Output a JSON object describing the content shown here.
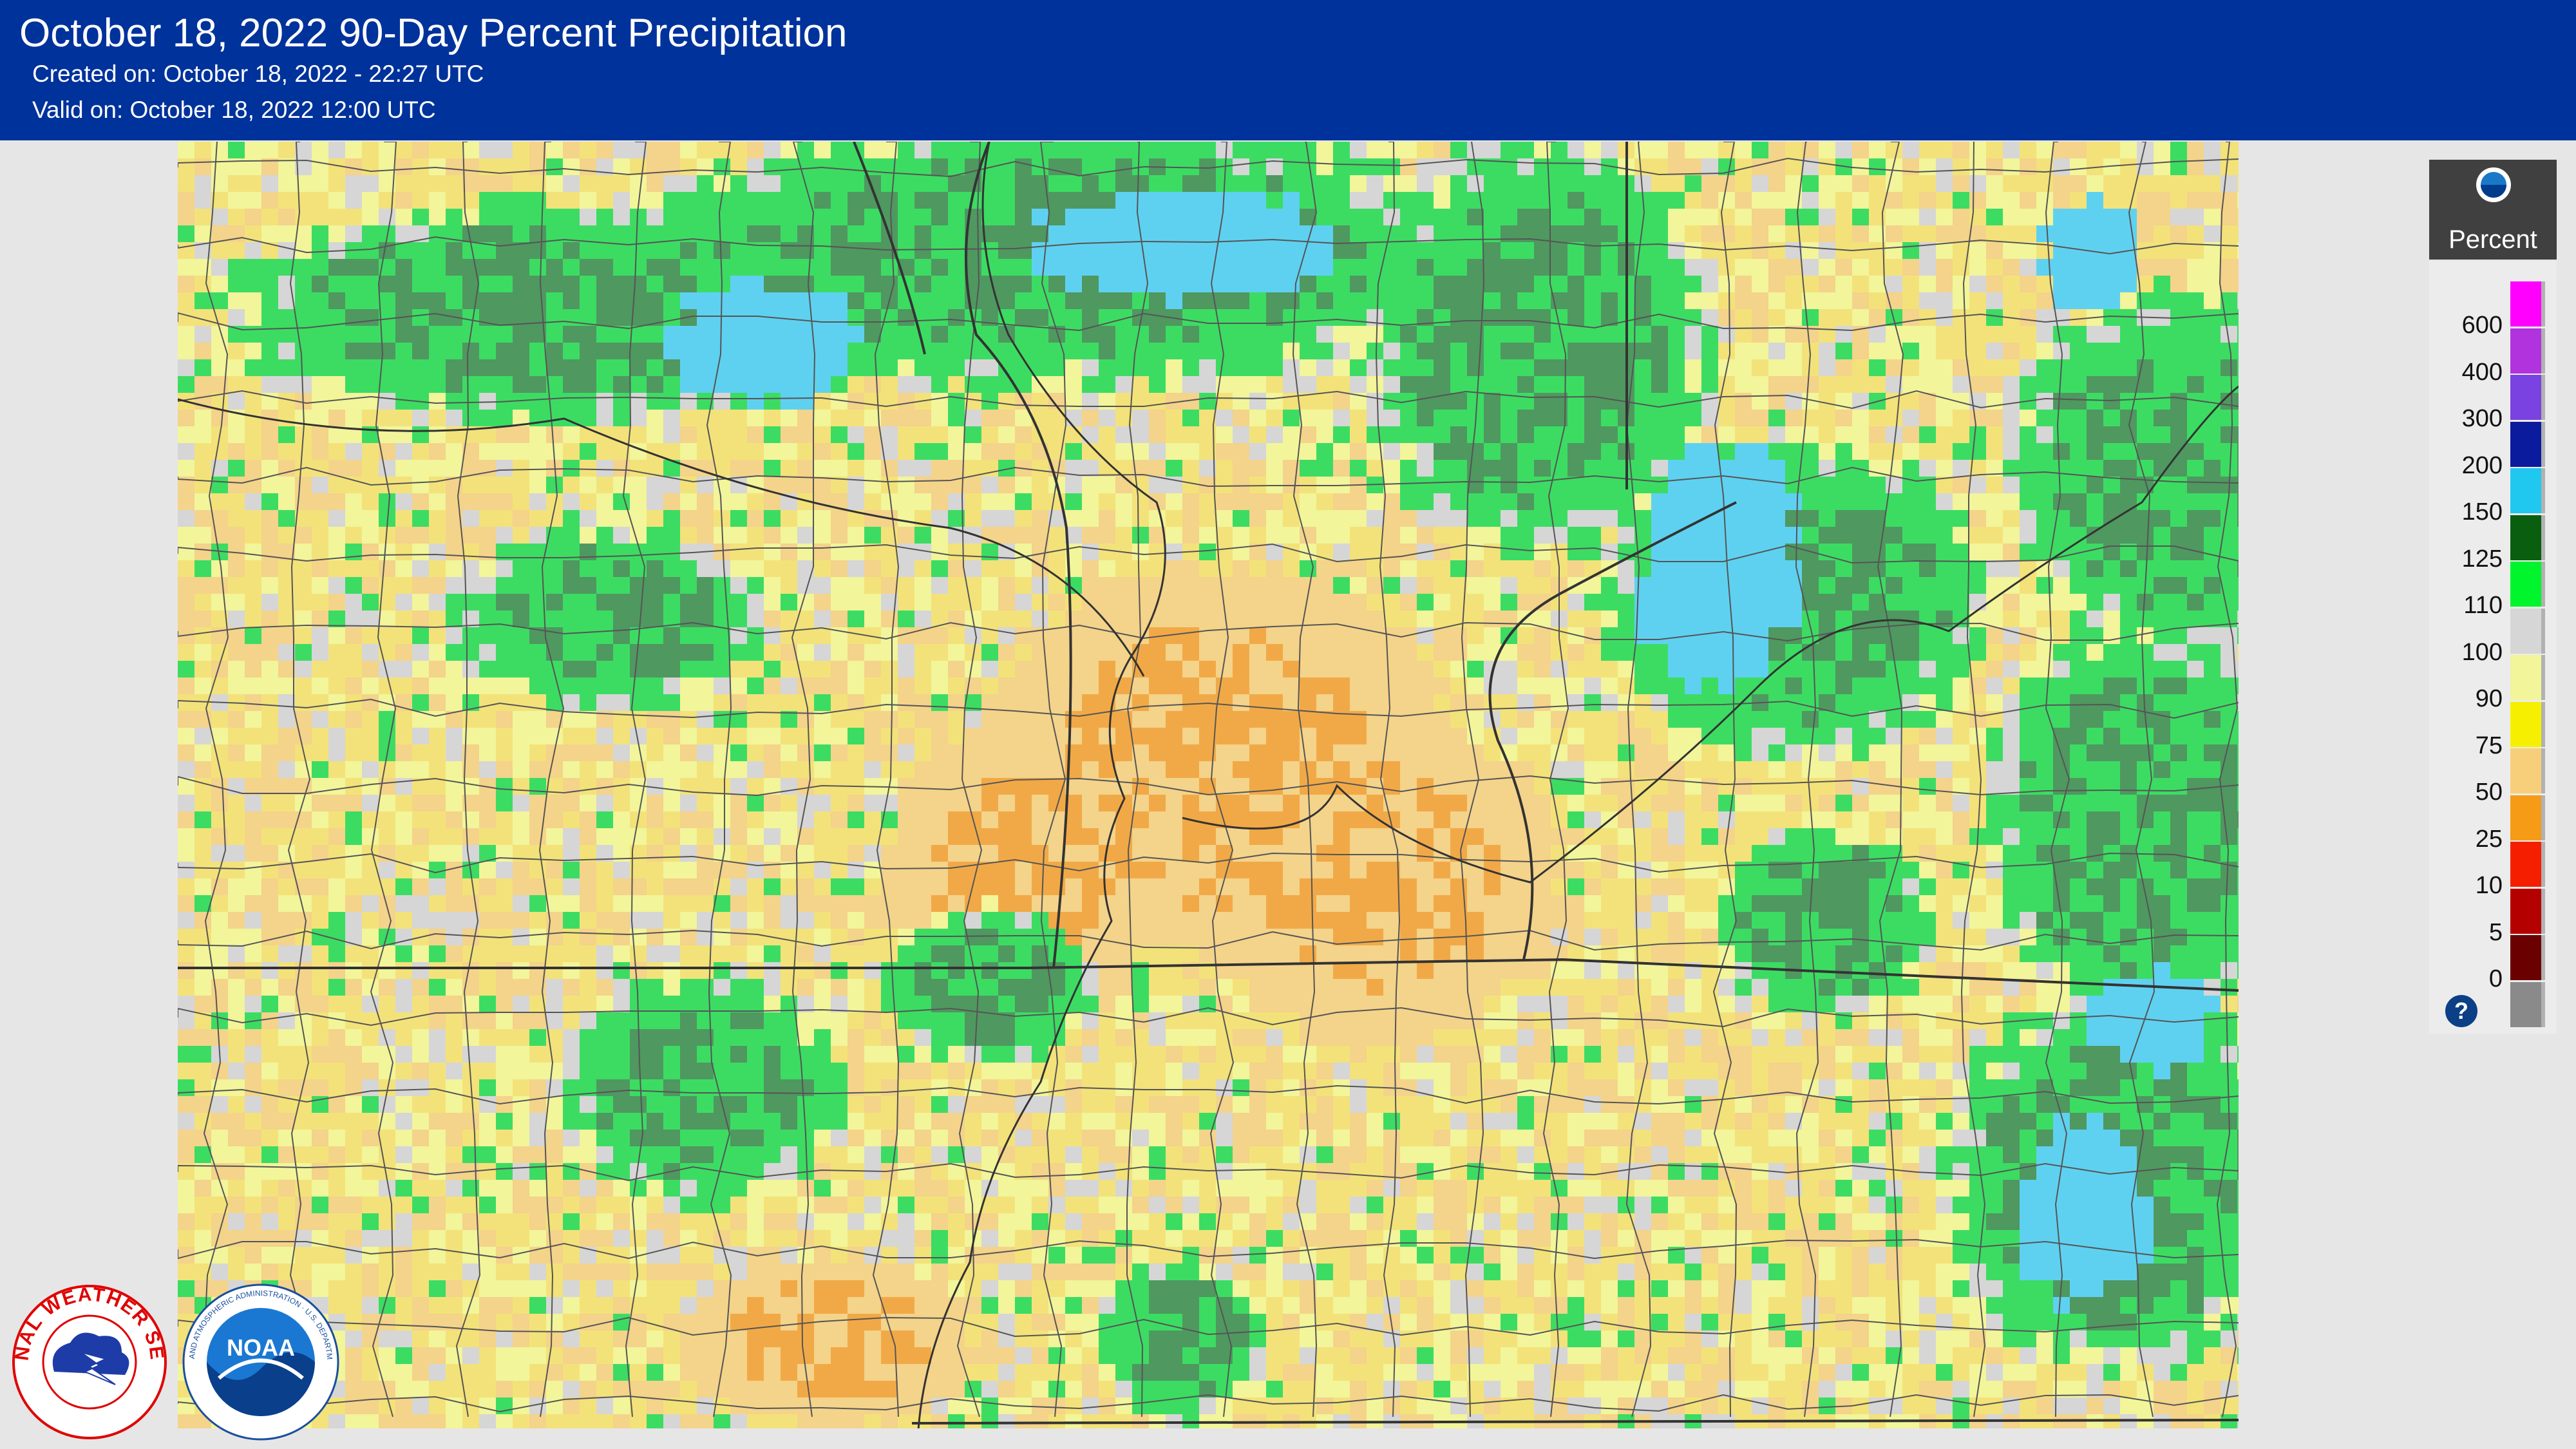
{
  "header": {
    "title": "October 18, 2022 90-Day Percent Precipitation",
    "created": "Created on: October 18, 2022 - 22:27 UTC",
    "valid": "Valid on: October 18, 2022 12:00 UTC"
  },
  "legend": {
    "title": "Percent",
    "logo_icon": "noaa-logo-icon",
    "labels": [
      "600",
      "400",
      "300",
      "200",
      "150",
      "125",
      "110",
      "100",
      "90",
      "75",
      "50",
      "25",
      "10",
      "5",
      "0"
    ],
    "colors": [
      "#ff00ff",
      "#b033dd",
      "#7a42e0",
      "#0a1b9e",
      "#20c8f0",
      "#0a5e10",
      "#00f52c",
      "#d6d6d6",
      "#f2f59a",
      "#f6f000",
      "#f7cf7a",
      "#f69b16",
      "#f51f00",
      "#b50000",
      "#6b0000",
      "#8a8a8a"
    ]
  },
  "map": {
    "fill_colors": {
      "background": "#f3e27a",
      "dry_tan": "#f4d38a",
      "orange": "#f1a947",
      "pale": "#f2f59a",
      "gray": "#d6d6d6",
      "green": "#3cdc63",
      "dark_green": "#4f9860",
      "blue": "#5fd1f0",
      "state_line": "#333333",
      "county_line": "#555555"
    }
  },
  "logos": {
    "nws": "national-weather-service-logo",
    "noaa": "noaa-logo",
    "nws_text": "NATIONAL WEATHER SERVICE",
    "noaa_text": "NOAA",
    "noaa_ring_text": "NATIONAL OCEANIC AND ATMOSPHERIC ADMINISTRATION · U.S. DEPARTMENT OF COMMERCE"
  },
  "help": {
    "icon": "help-icon",
    "label": "?"
  }
}
